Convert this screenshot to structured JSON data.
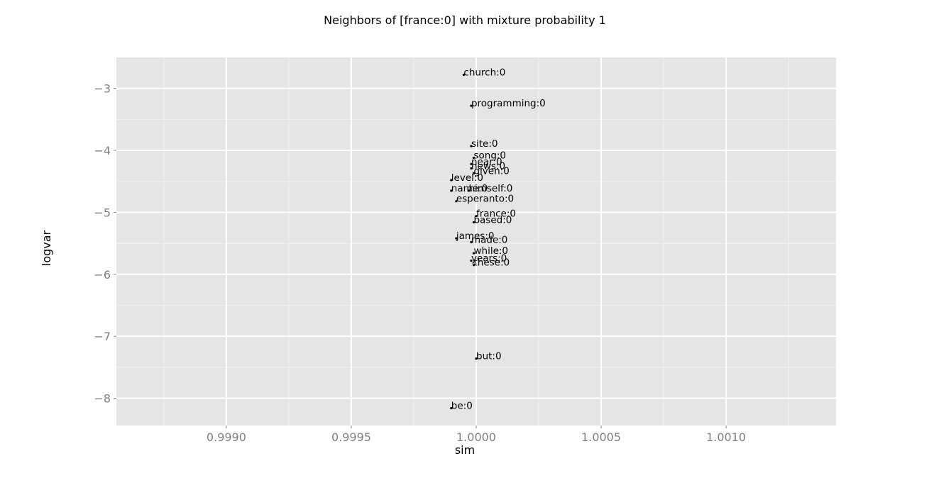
{
  "chart_data": {
    "type": "scatter",
    "title": "Neighbors of [france:0] with mixture probability 1",
    "xlabel": "sim",
    "ylabel": "logvar",
    "xlim": [
      0.99856,
      1.00144
    ],
    "ylim": [
      -8.44,
      -2.5
    ],
    "xticks": [
      0.999,
      0.9995,
      1.0,
      1.0005,
      1.001
    ],
    "xtick_labels": [
      "0.9990",
      "0.9995",
      "1.0000",
      "1.0005",
      "1.0010"
    ],
    "yticks": [
      -8,
      -7,
      -6,
      -5,
      -4,
      -3
    ],
    "ytick_labels": [
      "−8",
      "−7",
      "−6",
      "−5",
      "−4",
      "−3"
    ],
    "grid": true,
    "background": "#e5e5e5",
    "grid_color": "#ffffff",
    "point_color": "#000000",
    "points": [
      {
        "label": "church:0",
        "x": 0.99995,
        "y": -2.78
      },
      {
        "label": "programming:0",
        "x": 0.99998,
        "y": -3.28
      },
      {
        "label": "site:0",
        "x": 0.99998,
        "y": -3.93
      },
      {
        "label": "song:0",
        "x": 0.99999,
        "y": -4.12
      },
      {
        "label": "near:0",
        "x": 0.99998,
        "y": -4.22
      },
      {
        "label": "news:0",
        "x": 0.99998,
        "y": -4.29
      },
      {
        "label": "given:0",
        "x": 0.99999,
        "y": -4.37
      },
      {
        "label": "level:0",
        "x": 0.9999,
        "y": -4.48
      },
      {
        "label": "name:0",
        "x": 0.9999,
        "y": -4.65
      },
      {
        "label": "himself:0",
        "x": 0.99997,
        "y": -4.65
      },
      {
        "label": "esperanto:0",
        "x": 0.99992,
        "y": -4.82
      },
      {
        "label": "france:0",
        "x": 1.0,
        "y": -5.06
      },
      {
        "label": "based:0",
        "x": 0.99999,
        "y": -5.16
      },
      {
        "label": "james:0",
        "x": 0.99992,
        "y": -5.42
      },
      {
        "label": "made:0",
        "x": 0.99998,
        "y": -5.48
      },
      {
        "label": "while:0",
        "x": 0.99999,
        "y": -5.66
      },
      {
        "label": "years:0",
        "x": 0.99998,
        "y": -5.78
      },
      {
        "label": "these:0",
        "x": 0.99999,
        "y": -5.85
      },
      {
        "label": "but:0",
        "x": 1.0,
        "y": -7.36
      },
      {
        "label": "be:0",
        "x": 0.9999,
        "y": -8.16
      }
    ]
  }
}
